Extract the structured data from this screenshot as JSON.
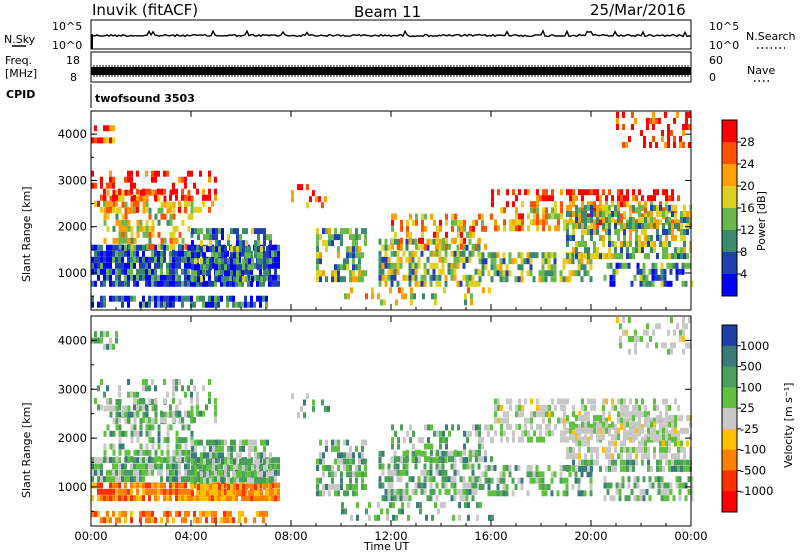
{
  "header": {
    "station": "Inuvik (fitACF)",
    "beam": "Beam 11",
    "date": "25/Mar/2016"
  },
  "strips": {
    "nsky_label": "N.Sky",
    "nsky_ticks": [
      "10^5",
      "10^0"
    ],
    "nsearch_label": "N.Search",
    "nsearch_ticks": [
      "10^5",
      "10^0"
    ],
    "freq_label_1": "Freq.",
    "freq_label_2": "[MHz]",
    "freq_ticks": [
      "18",
      "8"
    ],
    "nave_label": "Nave",
    "nave_ticks": [
      "60",
      "0"
    ],
    "cpid_label": "CPID",
    "cpid_value": "twofsound 3503"
  },
  "chart_data": [
    {
      "type": "heatmap",
      "title": "",
      "xlabel": "",
      "ylabel": "Slant Range [km]",
      "x_ticks": [
        "00:00",
        "04:00",
        "08:00",
        "12:00",
        "16:00",
        "20:00",
        "00:00"
      ],
      "y_ticks": [
        "1000",
        "2000",
        "3000",
        "4000"
      ],
      "ylim": [
        200,
        4500
      ],
      "colorbar": {
        "label": "Power [dB]",
        "ticks": [
          "4",
          "8",
          "12",
          "16",
          "20",
          "24",
          "28"
        ],
        "colors": [
          "#0000ff",
          "#2040b0",
          "#3a8a6e",
          "#6ab84a",
          "#e0d020",
          "#ffa000",
          "#ff5000",
          "#ff0000"
        ]
      }
    },
    {
      "type": "heatmap",
      "title": "",
      "xlabel": "Time UT",
      "ylabel": "Slant Range [km]",
      "x_ticks": [
        "00:00",
        "04:00",
        "08:00",
        "12:00",
        "16:00",
        "20:00",
        "00:00"
      ],
      "y_ticks": [
        "1000",
        "2000",
        "3000",
        "4000"
      ],
      "ylim": [
        200,
        4500
      ],
      "colorbar": {
        "label": "Velocity [m s⁻¹]",
        "ticks": [
          "1000",
          "500",
          "100",
          "25",
          "-25",
          "-100",
          "-500",
          "-1000"
        ],
        "colors": [
          "#1e3fa8",
          "#3a7a7a",
          "#4aa05a",
          "#60c040",
          "#c8c8c8",
          "#ffc000",
          "#ff8000",
          "#ff3000",
          "#ff0000"
        ]
      }
    }
  ]
}
